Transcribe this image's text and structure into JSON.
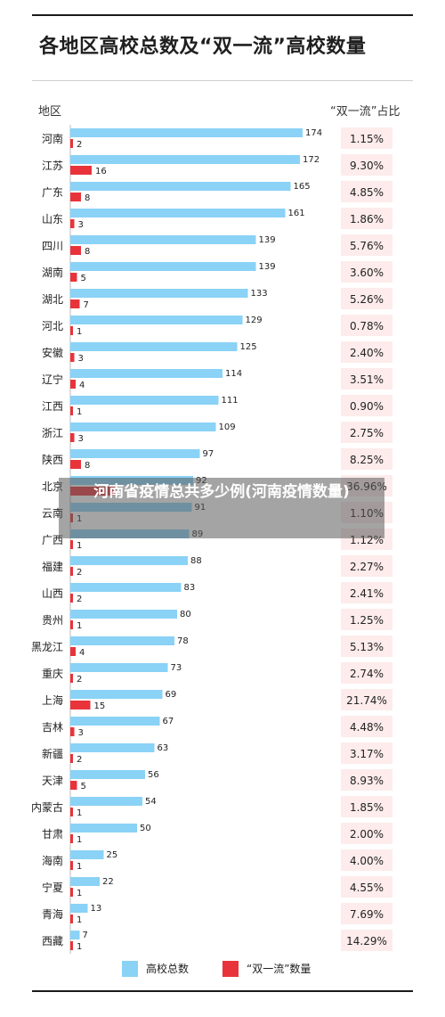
{
  "title": "各地区高校总数及“双一流”高校数量",
  "header": {
    "region_label": "地区",
    "ratio_label": "“双一流”占比"
  },
  "overlay": {
    "text": "河南省疫情总共多少例(河南疫情数量)"
  },
  "colors": {
    "total": "#8ad2f6",
    "double_first_class": "#e8333a",
    "ratio_bg": "#fdeceb",
    "rule": "#1a1a1a"
  },
  "chart_data": {
    "type": "bar",
    "orientation": "horizontal",
    "title": "各地区高校总数及“双一流”高校数量",
    "categories": [
      "河南",
      "江苏",
      "广东",
      "山东",
      "四川",
      "湖南",
      "湖北",
      "河北",
      "安徽",
      "辽宁",
      "江西",
      "浙江",
      "陕西",
      "北京",
      "云南",
      "广西",
      "福建",
      "山西",
      "贵州",
      "黑龙江",
      "重庆",
      "上海",
      "吉林",
      "新疆",
      "天津",
      "内蒙古",
      "甘肃",
      "海南",
      "宁夏",
      "青海",
      "西藏"
    ],
    "series": [
      {
        "name": "高校总数",
        "values": [
          174,
          172,
          165,
          161,
          139,
          139,
          133,
          129,
          125,
          114,
          111,
          109,
          97,
          92,
          91,
          89,
          88,
          83,
          80,
          78,
          73,
          69,
          67,
          63,
          56,
          54,
          50,
          25,
          22,
          13,
          7
        ]
      },
      {
        "name": "“双一流”数量",
        "values": [
          2,
          16,
          8,
          3,
          8,
          5,
          7,
          1,
          3,
          4,
          1,
          3,
          8,
          34,
          1,
          1,
          2,
          2,
          1,
          4,
          2,
          15,
          3,
          2,
          5,
          1,
          1,
          1,
          1,
          1,
          1
        ]
      }
    ],
    "ratio_labels": [
      "1.15%",
      "9.30%",
      "4.85%",
      "1.86%",
      "5.76%",
      "3.60%",
      "5.26%",
      "0.78%",
      "2.40%",
      "3.51%",
      "0.90%",
      "2.75%",
      "8.25%",
      "36.96%",
      "1.10%",
      "1.12%",
      "2.27%",
      "2.41%",
      "1.25%",
      "5.13%",
      "2.74%",
      "21.74%",
      "4.48%",
      "3.17%",
      "8.93%",
      "1.85%",
      "2.00%",
      "4.00%",
      "4.55%",
      "7.69%",
      "14.29%"
    ],
    "value_labels_shown": {
      "total": [
        "174",
        "172",
        "165",
        "161",
        "139",
        "139",
        "133",
        "129",
        "125",
        "114",
        "111",
        "109",
        "97",
        "92",
        "91",
        "89",
        "88",
        "83",
        "80",
        "78",
        "73",
        "69",
        "67",
        "63",
        "56",
        "54",
        "50",
        "25",
        "22",
        "13",
        "7"
      ],
      "double_first_class": [
        "2",
        "16",
        "8",
        "3",
        "8",
        "5",
        "7",
        "1",
        "3",
        "4",
        "1",
        "3",
        "8",
        "",
        "1",
        "1",
        "2",
        "2",
        "1",
        "4",
        "2",
        "15",
        "3",
        "2",
        "5",
        "1",
        "1",
        "1",
        "1",
        "1",
        "1"
      ]
    },
    "legend": [
      "高校总数",
      "“双一流”数量"
    ],
    "legend_position": "bottom",
    "grid": false
  }
}
